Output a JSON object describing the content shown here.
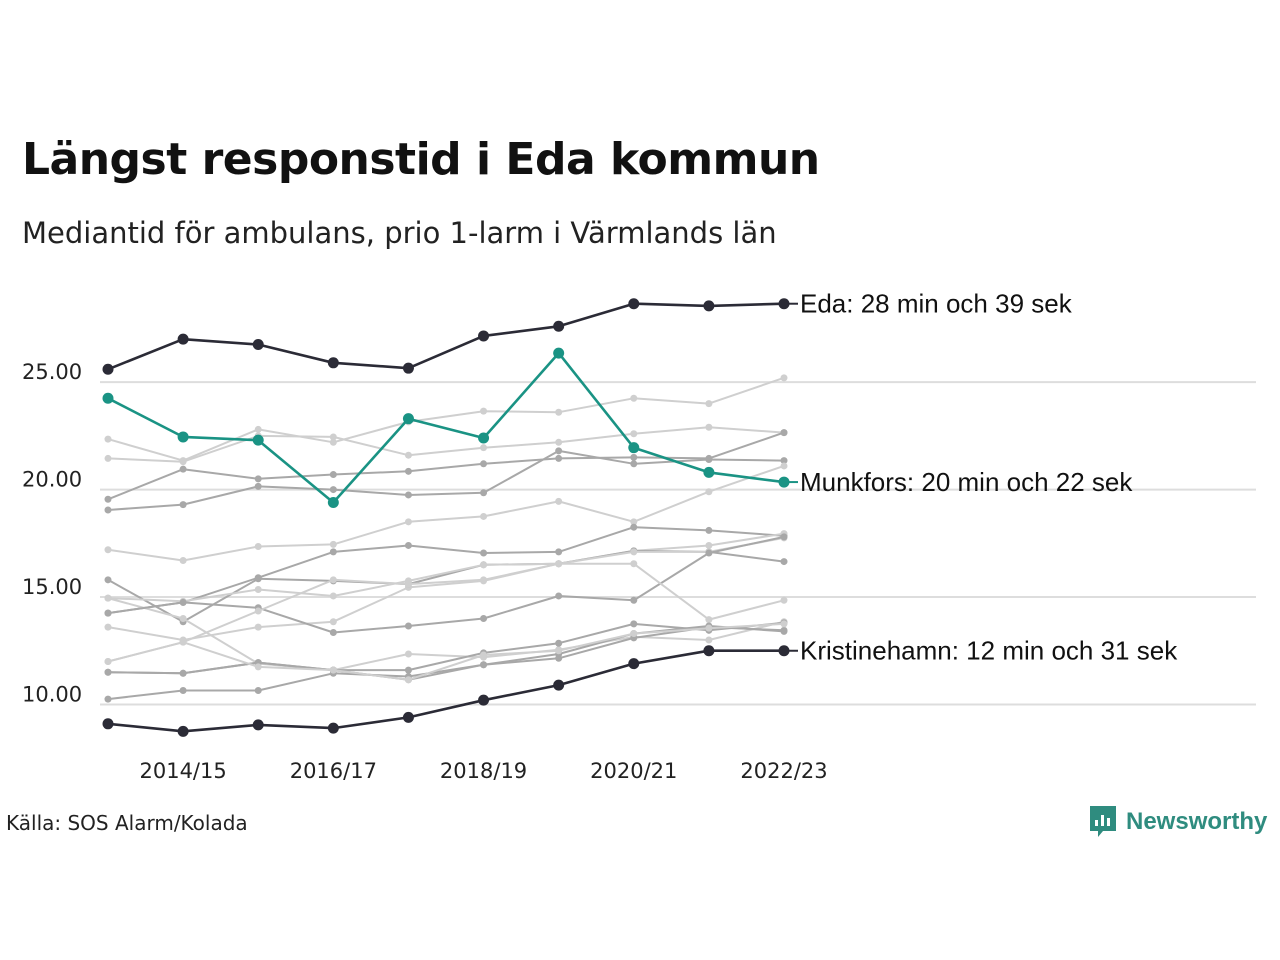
{
  "title": "Längst responstid i Eda kommun",
  "subtitle": "Mediantid för ambulans, prio 1-larm i Värmlands län",
  "source": "Källa: SOS Alarm/Kolada",
  "brand": {
    "name": "Newsworthy",
    "icon": "newsworthy-logo-icon",
    "color": "#2f8c7f"
  },
  "chart_data": {
    "type": "line",
    "x": [
      "2013/14",
      "2014/15",
      "2015/16",
      "2016/17",
      "2017/18",
      "2018/19",
      "2019/20",
      "2020/21",
      "2021/22",
      "2022/23"
    ],
    "x_tick_labels": [
      "2014/15",
      "2016/17",
      "2018/19",
      "2020/21",
      "2022/23"
    ],
    "y_ticks": [
      "10.00",
      "15.00",
      "20.00",
      "25.00"
    ],
    "ylim": [
      8.3,
      29.8
    ],
    "grid": "horizontal",
    "colors": {
      "highlight_dark": "#2b2b36",
      "highlight_teal": "#1a9384",
      "background_light": "#cfcfcf",
      "background_mid": "#a8a8a8",
      "grid": "#dddddd"
    },
    "highlighted": [
      {
        "name": "Eda",
        "label": "Eda: 28 min och 39 sek",
        "color": "#2b2b36",
        "values": [
          25.6,
          27.0,
          26.75,
          25.9,
          25.65,
          27.15,
          27.6,
          28.65,
          28.55,
          28.65
        ]
      },
      {
        "name": "Munkfors",
        "label": "Munkfors: 20 min och 22 sek",
        "color": "#1a9384",
        "values": [
          24.25,
          22.45,
          22.3,
          19.4,
          23.3,
          22.4,
          26.35,
          21.95,
          20.8,
          20.35
        ]
      },
      {
        "name": "Kristinehamn",
        "label": "Kristinehamn: 12 min och 31 sek",
        "color": "#2b2b36",
        "values": [
          9.1,
          8.75,
          9.05,
          8.9,
          9.4,
          10.2,
          10.9,
          11.9,
          12.5,
          12.5
        ]
      }
    ],
    "others": [
      {
        "color": "#cfcfcf",
        "values": [
          22.35,
          21.35,
          22.8,
          22.2,
          23.15,
          23.65,
          23.6,
          24.25,
          24.0,
          25.2
        ]
      },
      {
        "color": "#cfcfcf",
        "values": [
          21.45,
          21.3,
          22.5,
          22.45,
          21.6,
          21.95,
          22.2,
          22.6,
          22.9,
          22.65
        ]
      },
      {
        "color": "#a8a8a8",
        "values": [
          19.55,
          20.95,
          20.5,
          20.7,
          20.85,
          21.2,
          21.45,
          21.5,
          21.45,
          22.65
        ]
      },
      {
        "color": "#a8a8a8",
        "values": [
          19.05,
          19.3,
          20.15,
          20.0,
          19.75,
          19.85,
          21.8,
          21.2,
          21.4,
          21.35
        ]
      },
      {
        "color": "#cfcfcf",
        "values": [
          17.2,
          16.7,
          17.35,
          17.45,
          18.5,
          18.75,
          19.45,
          18.5,
          19.9,
          21.1
        ]
      },
      {
        "color": "#a8a8a8",
        "values": [
          14.25,
          14.75,
          15.9,
          17.1,
          17.4,
          17.05,
          17.1,
          18.25,
          18.1,
          17.85
        ]
      },
      {
        "color": "#cfcfcf",
        "values": [
          13.6,
          13.0,
          13.6,
          13.85,
          15.45,
          15.75,
          16.55,
          17.15,
          17.4,
          17.95
        ]
      },
      {
        "color": "#a8a8a8",
        "values": [
          15.8,
          13.85,
          15.85,
          15.75,
          15.6,
          16.5,
          16.55,
          17.15,
          17.1,
          16.65
        ]
      },
      {
        "color": "#cfcfcf",
        "values": [
          14.95,
          14.8,
          15.35,
          15.05,
          15.75,
          16.5,
          16.55,
          17.1,
          17.1,
          17.75
        ]
      },
      {
        "color": "#cfcfcf",
        "values": [
          14.95,
          14.0,
          11.9,
          11.6,
          12.35,
          12.2,
          12.55,
          13.15,
          13.0,
          13.85
        ]
      },
      {
        "color": "#a8a8a8",
        "values": [
          14.25,
          14.75,
          14.5,
          13.35,
          13.65,
          14.0,
          15.05,
          14.85,
          17.05,
          17.8
        ]
      },
      {
        "color": "#cfcfcf",
        "values": [
          12.0,
          12.9,
          14.35,
          15.8,
          15.6,
          15.8,
          16.55,
          16.55,
          13.95,
          14.85
        ]
      },
      {
        "color": "#a8a8a8",
        "values": [
          11.5,
          11.45,
          11.95,
          11.6,
          11.6,
          12.4,
          12.85,
          13.75,
          13.45,
          13.8
        ]
      },
      {
        "color": "#a8a8a8",
        "values": [
          11.5,
          11.45,
          11.95,
          11.6,
          11.15,
          11.85,
          12.15,
          13.1,
          13.6,
          13.45
        ]
      },
      {
        "color": "#a8a8a8",
        "values": [
          10.25,
          10.65,
          10.65,
          11.45,
          11.3,
          11.85,
          12.35,
          13.3,
          13.65,
          13.4
        ]
      },
      {
        "color": "#cfcfcf",
        "values": [
          12.0,
          12.9,
          11.75,
          11.6,
          11.15,
          12.3,
          12.5,
          13.3,
          13.55,
          13.75
        ]
      }
    ]
  }
}
